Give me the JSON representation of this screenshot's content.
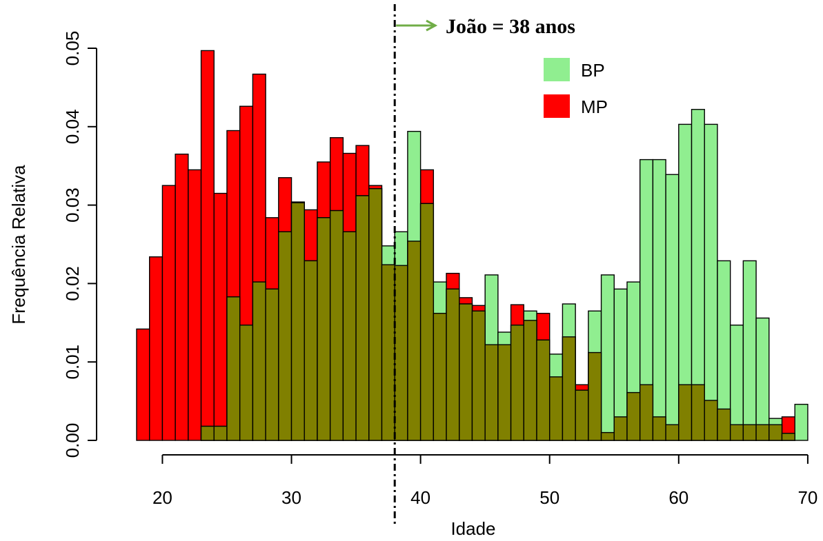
{
  "chart_data": {
    "type": "bar",
    "subtype": "overlaid-histogram",
    "title": "",
    "xlabel": "Idade",
    "ylabel": "Frequência Relativa",
    "xlim": [
      18,
      70
    ],
    "ylim": [
      0,
      0.05
    ],
    "bin_width": 1,
    "x_ticks": [
      20,
      30,
      40,
      50,
      60,
      70
    ],
    "x_tick_labels": [
      "20",
      "30",
      "40",
      "50",
      "60",
      "70"
    ],
    "y_ticks": [
      0,
      0.01,
      0.02,
      0.03,
      0.04,
      0.05
    ],
    "y_tick_labels": [
      "0.00",
      "0.01",
      "0.02",
      "0.03",
      "0.04",
      "0.05"
    ],
    "grid": false,
    "legend_position": "top-right",
    "bin_starts": [
      18,
      19,
      20,
      21,
      22,
      23,
      24,
      25,
      26,
      27,
      28,
      29,
      30,
      31,
      32,
      33,
      34,
      35,
      36,
      37,
      38,
      39,
      40,
      41,
      42,
      43,
      44,
      45,
      46,
      47,
      48,
      49,
      50,
      51,
      52,
      53,
      54,
      55,
      56,
      57,
      58,
      59,
      60,
      61,
      62,
      63,
      64,
      65,
      66,
      67,
      68,
      69
    ],
    "series": [
      {
        "name": "MP",
        "color": "#ff0000",
        "values": [
          0.0142,
          0.0234,
          0.0325,
          0.0365,
          0.0345,
          0.0497,
          0.0315,
          0.0395,
          0.0426,
          0.0467,
          0.0284,
          0.0335,
          0.0304,
          0.0294,
          0.0355,
          0.0386,
          0.0366,
          0.0376,
          0.0325,
          0.0224,
          0.0223,
          0.0254,
          0.0345,
          0.0162,
          0.0213,
          0.0182,
          0.0172,
          0.0122,
          0.0122,
          0.0173,
          0.0153,
          0.0162,
          0.0081,
          0.0132,
          0.0071,
          0.0112,
          0.001,
          0.003,
          0.0061,
          0.0071,
          0.003,
          0.002,
          0.0071,
          0.0071,
          0.0051,
          0.004,
          0.002,
          0.002,
          0.002,
          0.002,
          0.003,
          0.0
        ]
      },
      {
        "name": "BP",
        "color": "#90ee90",
        "values": [
          0.0,
          0.0,
          0.0,
          0.0,
          0.0,
          0.0018,
          0.0018,
          0.0183,
          0.0147,
          0.0202,
          0.0193,
          0.0266,
          0.0303,
          0.0229,
          0.0284,
          0.0293,
          0.0266,
          0.0312,
          0.0321,
          0.0248,
          0.0266,
          0.0394,
          0.0302,
          0.0202,
          0.0193,
          0.0174,
          0.0165,
          0.0211,
          0.0138,
          0.0147,
          0.0165,
          0.0128,
          0.011,
          0.0174,
          0.0064,
          0.0165,
          0.0211,
          0.0193,
          0.0202,
          0.0358,
          0.0358,
          0.0339,
          0.0403,
          0.0422,
          0.0403,
          0.0229,
          0.0147,
          0.0229,
          0.0156,
          0.0028,
          0.0009,
          0.0046
        ]
      }
    ],
    "overlap_color": "#808000",
    "reference_line": {
      "x": 38,
      "style": "dash-dot",
      "label": "João = 38 anos",
      "arrow_color": "#70ad47"
    }
  }
}
